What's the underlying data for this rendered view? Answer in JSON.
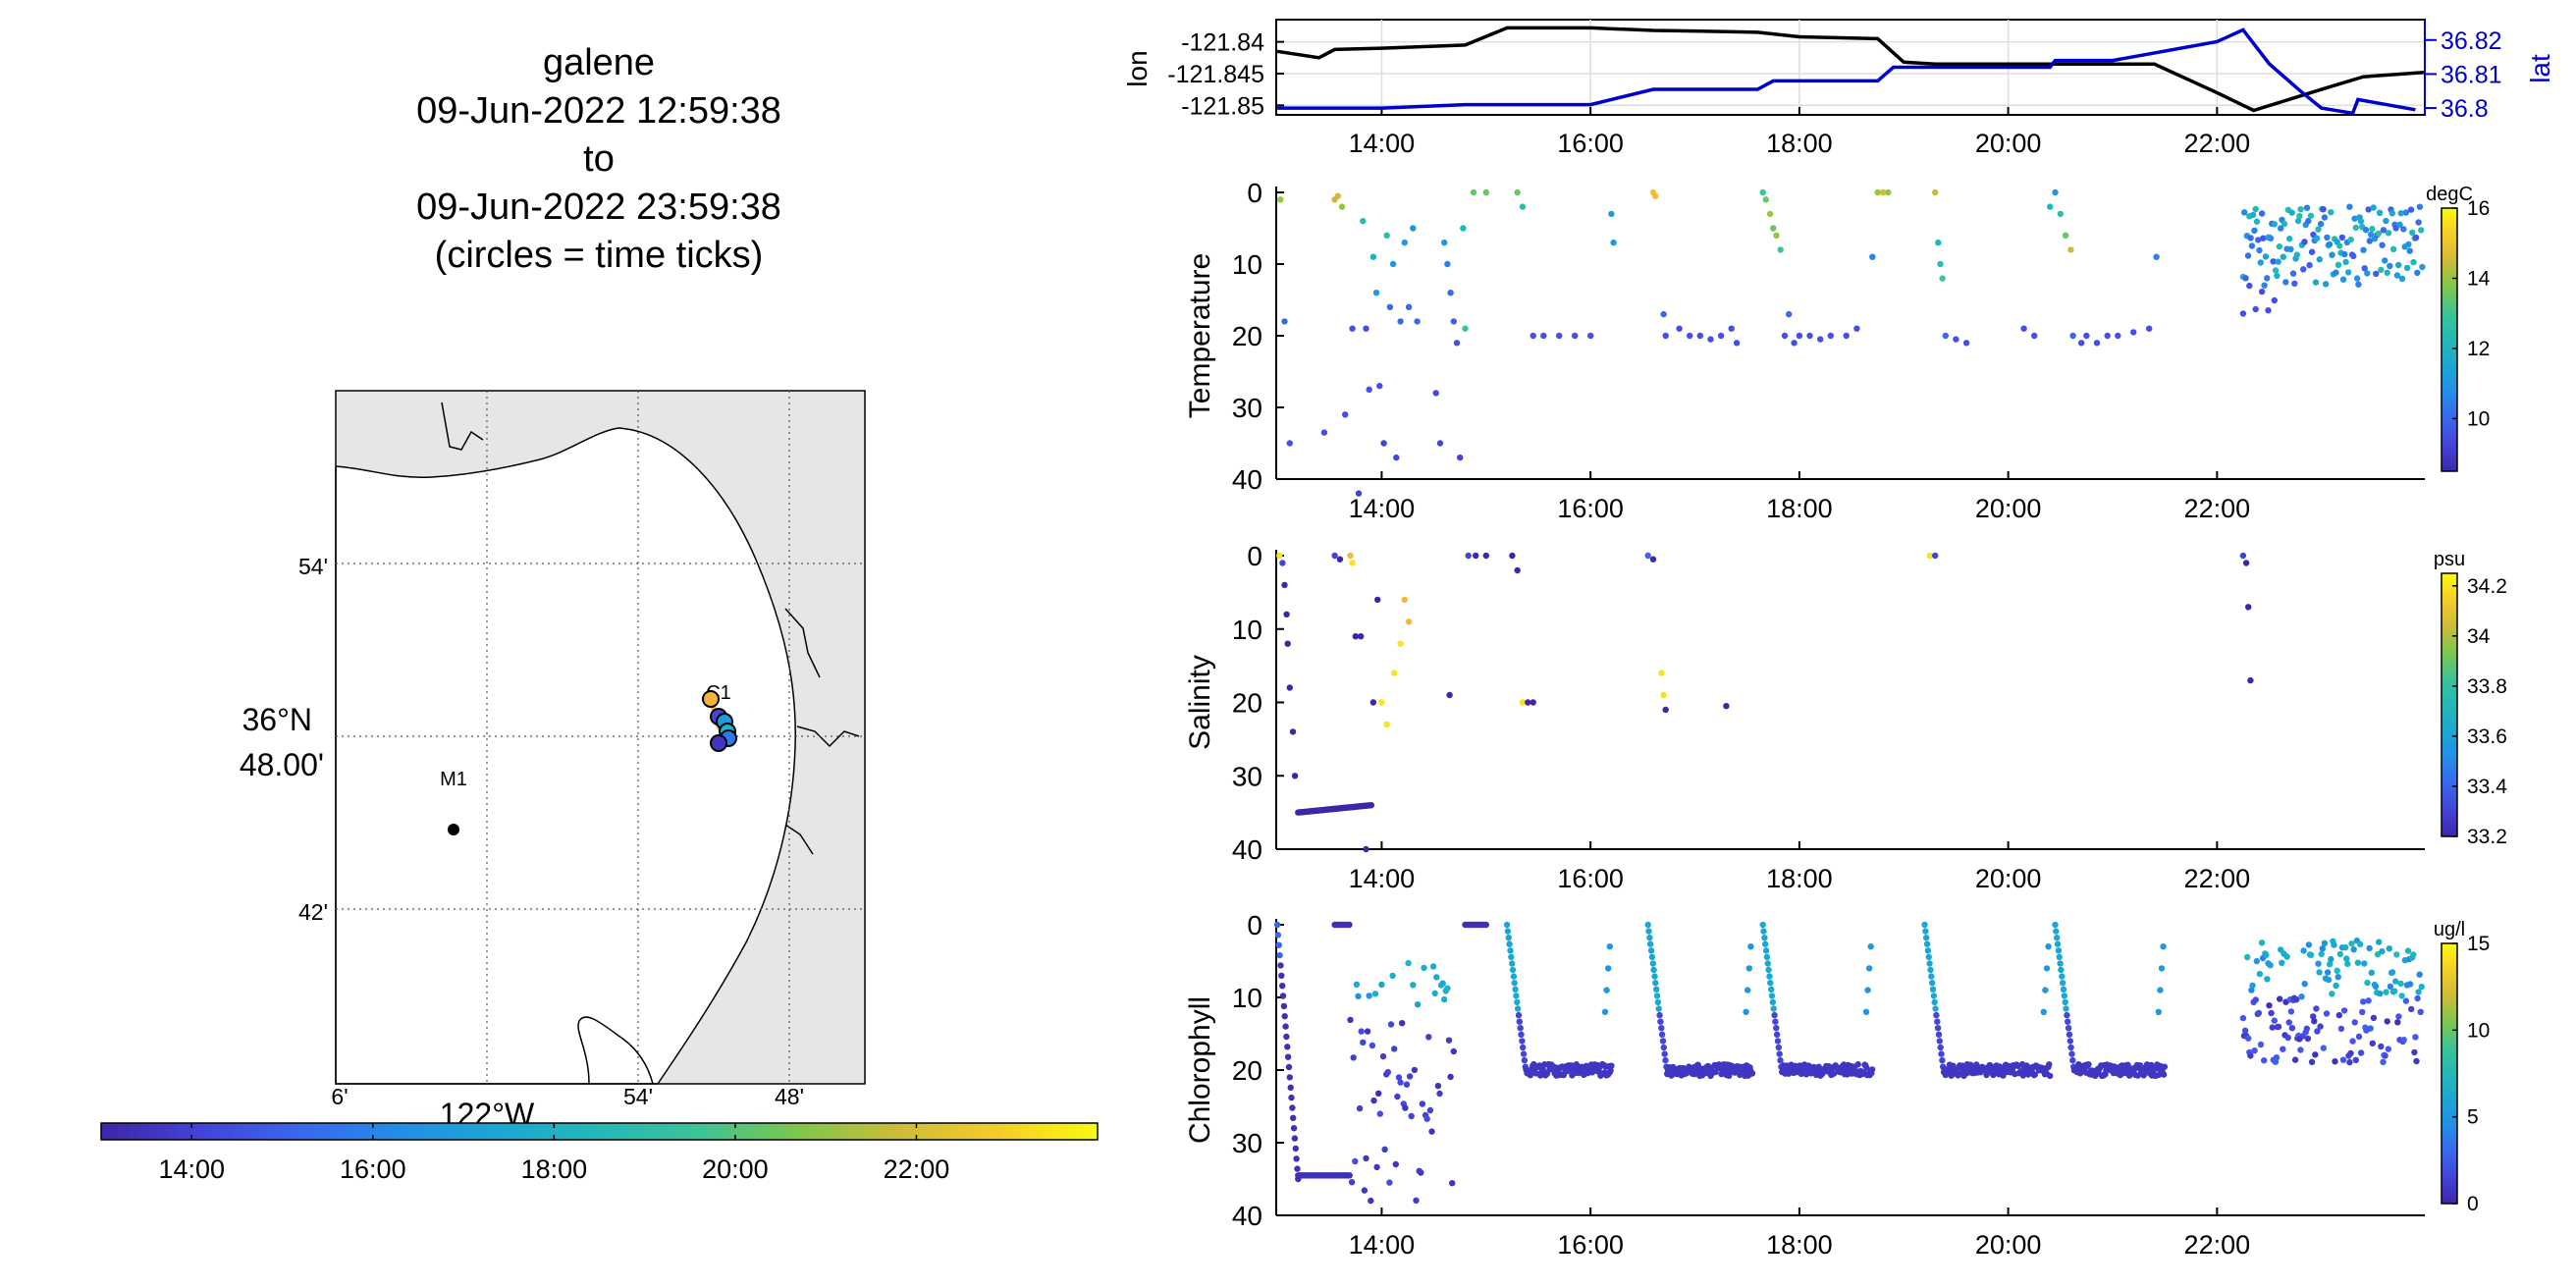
{
  "title": {
    "lines": [
      "galene",
      "09-Jun-2022 12:59:38",
      "to",
      "09-Jun-2022 23:59:38",
      "(circles = time ticks)"
    ]
  },
  "map": {
    "lat_ticks": [
      "54'",
      "36°N|48.00'",
      "42'"
    ],
    "lon_ticks": [
      "6'",
      "122°W",
      "54'",
      "48'"
    ],
    "stations": [
      {
        "name": "M1",
        "kind": "mooring"
      },
      {
        "name": "C1",
        "kind": "station"
      }
    ],
    "colors": {
      "land": "#e6e6e6",
      "water": "#ffffff",
      "coast": "#000000"
    }
  },
  "time_colorbar": {
    "ticks": [
      "14:00",
      "16:00",
      "18:00",
      "20:00",
      "22:00"
    ],
    "colormap": "parula"
  },
  "chart_data": [
    {
      "type": "line",
      "ylabel_left": "lon",
      "ylabel_right": "lat",
      "x_ticks": [
        "14:00",
        "16:00",
        "18:00",
        "20:00",
        "22:00"
      ],
      "xlim": [
        "12:59",
        "23:59"
      ],
      "yticks_left": [
        "-121.84",
        "-121.845",
        "-121.85"
      ],
      "yticks_right": [
        "36.82",
        "36.81",
        "36.8"
      ],
      "ylim_left": [
        -121.8515,
        -121.8365
      ],
      "ylim_right": [
        36.798,
        36.826
      ],
      "grid": true,
      "series": [
        {
          "name": "lon",
          "color": "#000000",
          "axis": "left",
          "x": [
            13.0,
            13.4,
            13.55,
            14.0,
            14.8,
            15.2,
            16.0,
            16.6,
            17.0,
            17.6,
            18.0,
            18.75,
            19.0,
            19.3,
            20.0,
            20.6,
            21.0,
            21.4,
            22.0,
            22.35,
            23.0,
            23.4,
            23.98
          ],
          "y": [
            -121.8415,
            -121.8425,
            -121.8412,
            -121.841,
            -121.8405,
            -121.8378,
            -121.8378,
            -121.8382,
            -121.8383,
            -121.8385,
            -121.8392,
            -121.8395,
            -121.8432,
            -121.8435,
            -121.8435,
            -121.8435,
            -121.8435,
            -121.8435,
            -121.848,
            -121.8508,
            -121.8475,
            -121.8455,
            -121.8448
          ]
        },
        {
          "name": "lat",
          "color": "#0000cc",
          "axis": "right",
          "x": [
            13.0,
            14.0,
            14.8,
            15.2,
            16.0,
            16.6,
            17.0,
            17.6,
            17.75,
            18.0,
            18.75,
            18.9,
            19.0,
            20.0,
            20.4,
            20.45,
            21.0,
            22.0,
            22.25,
            22.5,
            22.8,
            23.0,
            23.3,
            23.35,
            23.9
          ],
          "y": [
            36.8,
            36.8,
            36.801,
            36.801,
            36.801,
            36.8055,
            36.8055,
            36.8055,
            36.808,
            36.808,
            36.808,
            36.812,
            36.812,
            36.812,
            36.812,
            36.814,
            36.814,
            36.8195,
            36.823,
            36.813,
            36.805,
            36.8,
            36.7985,
            36.8025,
            36.7995
          ]
        }
      ]
    },
    {
      "type": "scatter",
      "ylabel": "Temperature",
      "colorbar_unit": "degC",
      "colorbar_ticks": [
        "16",
        "14",
        "12",
        "10"
      ],
      "clim": [
        8.5,
        16.0
      ],
      "ylim": [
        40,
        0
      ],
      "yticks": [
        "0",
        "10",
        "20",
        "30",
        "40"
      ],
      "x_ticks": [
        "14:00",
        "16:00",
        "18:00",
        "20:00",
        "22:00"
      ],
      "points": [
        [
          13.03,
          1,
          14
        ],
        [
          13.07,
          18,
          10
        ],
        [
          13.12,
          35,
          9.5
        ],
        [
          13.45,
          33.5,
          9.5
        ],
        [
          13.55,
          1,
          14.5
        ],
        [
          13.58,
          0.5,
          14.5
        ],
        [
          13.62,
          2,
          14
        ],
        [
          13.65,
          31,
          9.5
        ],
        [
          13.72,
          19,
          9.5
        ],
        [
          13.78,
          42,
          9.2
        ],
        [
          13.82,
          4,
          12.5
        ],
        [
          13.85,
          19,
          9.5
        ],
        [
          13.88,
          27.5,
          9.5
        ],
        [
          13.92,
          9,
          12
        ],
        [
          13.95,
          14,
          11
        ],
        [
          13.98,
          27,
          9.5
        ],
        [
          14.02,
          35,
          9.2
        ],
        [
          14.05,
          6,
          12.5
        ],
        [
          14.08,
          16,
          10
        ],
        [
          14.11,
          10,
          11
        ],
        [
          14.14,
          37,
          9.3
        ],
        [
          14.18,
          18,
          10
        ],
        [
          14.22,
          7,
          11
        ],
        [
          14.26,
          16,
          10
        ],
        [
          14.3,
          5,
          11
        ],
        [
          14.34,
          18,
          10
        ],
        [
          14.52,
          28,
          9.3
        ],
        [
          14.56,
          35,
          9.3
        ],
        [
          14.6,
          7,
          11
        ],
        [
          14.63,
          10,
          10.5
        ],
        [
          14.66,
          14,
          10
        ],
        [
          14.69,
          18,
          9.8
        ],
        [
          14.72,
          21,
          9.5
        ],
        [
          14.75,
          37,
          9.2
        ],
        [
          14.78,
          5,
          12
        ],
        [
          14.8,
          19,
          13
        ],
        [
          14.88,
          0,
          13.5
        ],
        [
          15.0,
          0,
          13.5
        ],
        [
          15.3,
          0,
          13.5
        ],
        [
          15.35,
          2,
          12.5
        ],
        [
          15.45,
          20,
          9.5
        ],
        [
          15.55,
          20,
          9.5
        ],
        [
          15.7,
          20,
          9.5
        ],
        [
          15.85,
          20,
          9.5
        ],
        [
          16.0,
          20,
          9.5
        ],
        [
          16.2,
          3,
          11
        ],
        [
          16.22,
          7,
          11
        ],
        [
          16.6,
          0,
          15
        ],
        [
          16.62,
          0.5,
          15
        ],
        [
          16.7,
          17,
          10
        ],
        [
          16.72,
          20,
          9.5
        ],
        [
          16.85,
          19,
          9.5
        ],
        [
          16.95,
          20,
          9.5
        ],
        [
          17.05,
          20,
          9.5
        ],
        [
          17.15,
          20.5,
          9.5
        ],
        [
          17.25,
          20,
          9.5
        ],
        [
          17.35,
          19,
          9.5
        ],
        [
          17.4,
          21,
          9.5
        ],
        [
          17.65,
          0,
          13
        ],
        [
          17.68,
          1,
          13.5
        ],
        [
          17.72,
          3,
          14
        ],
        [
          17.75,
          5,
          13.5
        ],
        [
          17.78,
          6,
          14
        ],
        [
          17.82,
          8,
          13
        ],
        [
          17.86,
          20,
          9.5
        ],
        [
          17.9,
          17,
          10
        ],
        [
          17.95,
          21,
          9.5
        ],
        [
          18.0,
          20,
          9.5
        ],
        [
          18.1,
          20,
          9.5
        ],
        [
          18.2,
          20.5,
          9.5
        ],
        [
          18.3,
          20,
          9.5
        ],
        [
          18.45,
          20,
          9.5
        ],
        [
          18.55,
          19,
          9.5
        ],
        [
          18.7,
          9,
          10.5
        ],
        [
          18.75,
          0,
          14
        ],
        [
          18.8,
          0,
          14.5
        ],
        [
          18.85,
          0,
          14
        ],
        [
          19.3,
          0,
          14.5
        ],
        [
          19.33,
          7,
          12
        ],
        [
          19.35,
          10,
          12.5
        ],
        [
          19.37,
          12,
          13
        ],
        [
          19.4,
          20,
          10
        ],
        [
          19.5,
          20.5,
          9.5
        ],
        [
          19.6,
          21,
          9.5
        ],
        [
          20.15,
          19,
          9.5
        ],
        [
          20.25,
          20,
          9.5
        ],
        [
          20.4,
          2,
          12
        ],
        [
          20.45,
          0,
          11
        ],
        [
          20.5,
          3,
          12.5
        ],
        [
          20.55,
          6,
          13.5
        ],
        [
          20.6,
          8,
          14.5
        ],
        [
          20.62,
          20,
          10
        ],
        [
          20.7,
          21,
          9.5
        ],
        [
          20.75,
          20,
          9.5
        ],
        [
          20.85,
          21,
          9.5
        ],
        [
          20.95,
          20,
          9.5
        ],
        [
          21.05,
          20,
          9.5
        ],
        [
          21.2,
          19.5,
          9.5
        ],
        [
          21.35,
          19,
          9.5
        ],
        [
          21.42,
          9,
          10.5
        ]
      ],
      "band": {
        "x": [
          22.25,
          23.97
        ],
        "y": [
          2,
          13
        ],
        "y_sparse": [
          13,
          21
        ],
        "color_range": [
          9.5,
          12.5
        ]
      }
    },
    {
      "type": "scatter",
      "ylabel": "Salinity",
      "colorbar_unit": "psu",
      "colorbar_ticks": [
        "34.2",
        "34",
        "33.8",
        "33.6",
        "33.4",
        "33.2"
      ],
      "clim": [
        33.2,
        34.25
      ],
      "ylim": [
        40,
        0
      ],
      "yticks": [
        "0",
        "10",
        "20",
        "30",
        "40"
      ],
      "x_ticks": [
        "14:00",
        "16:00",
        "18:00",
        "20:00",
        "22:00"
      ],
      "points": [
        [
          13.02,
          0,
          34.2
        ],
        [
          13.05,
          1,
          33.3
        ],
        [
          13.07,
          4,
          33.2
        ],
        [
          13.09,
          8,
          33.2
        ],
        [
          13.1,
          12,
          33.2
        ],
        [
          13.12,
          18,
          33.2
        ],
        [
          13.15,
          24,
          33.2
        ],
        [
          13.17,
          30,
          33.2
        ],
        [
          13.55,
          0,
          33.3
        ],
        [
          13.6,
          0.5,
          33.2
        ],
        [
          13.7,
          0,
          34.1
        ],
        [
          13.72,
          1,
          34.2
        ],
        [
          13.75,
          11,
          33.2
        ],
        [
          13.8,
          11,
          33.2
        ],
        [
          13.85,
          40,
          33.2
        ],
        [
          13.92,
          20,
          33.2
        ],
        [
          13.96,
          6,
          33.2
        ],
        [
          14.0,
          20,
          34.2
        ],
        [
          14.05,
          23,
          34.2
        ],
        [
          14.12,
          16,
          34.2
        ],
        [
          14.18,
          12,
          34.2
        ],
        [
          14.22,
          6,
          34.1
        ],
        [
          14.26,
          9,
          34.1
        ],
        [
          14.65,
          19,
          33.2
        ],
        [
          14.83,
          0,
          33.3
        ],
        [
          14.9,
          0,
          33.2
        ],
        [
          15.0,
          0,
          33.2
        ],
        [
          15.25,
          0,
          33.2
        ],
        [
          15.3,
          2,
          33.2
        ],
        [
          15.35,
          20,
          34.2
        ],
        [
          15.4,
          20,
          33.2
        ],
        [
          15.45,
          20,
          33.2
        ],
        [
          16.55,
          0,
          33.4
        ],
        [
          16.6,
          0.5,
          33.2
        ],
        [
          16.68,
          16,
          34.2
        ],
        [
          16.7,
          19,
          34.2
        ],
        [
          16.72,
          21,
          33.2
        ],
        [
          17.3,
          20.5,
          33.2
        ],
        [
          19.25,
          0,
          34.2
        ],
        [
          19.3,
          0,
          33.3
        ],
        [
          22.25,
          0,
          33.3
        ],
        [
          22.28,
          1,
          33.2
        ],
        [
          22.3,
          7,
          33.2
        ],
        [
          22.32,
          17,
          33.2
        ]
      ],
      "dense_profile": {
        "x": [
          13.2,
          13.9
        ],
        "y": [
          35,
          34
        ],
        "color": 33.2
      }
    },
    {
      "type": "scatter",
      "ylabel": "Chlorophyll",
      "colorbar_unit": "ug/l",
      "colorbar_ticks": [
        "15",
        "10",
        "5",
        "0"
      ],
      "clim": [
        0,
        15
      ],
      "ylim": [
        40,
        0
      ],
      "yticks": [
        "0",
        "10",
        "20",
        "30",
        "40"
      ],
      "x_ticks": [
        "14:00",
        "16:00",
        "18:00",
        "20:00",
        "22:00"
      ],
      "profiles": [
        {
          "x": [
            13.0,
            13.2
          ],
          "kind": "down",
          "ymax": 35
        },
        {
          "x": [
            13.55,
            13.7
          ],
          "kind": "surface"
        },
        {
          "x": [
            13.7,
            14.7
          ],
          "kind": "yoyo",
          "ymin": 5,
          "ymax": 39
        },
        {
          "x": [
            14.8,
            15.0
          ],
          "kind": "surface"
        },
        {
          "x": [
            15.2,
            16.2
          ],
          "kind": "down_flat",
          "ymax": 20
        },
        {
          "x": [
            16.55,
            17.55
          ],
          "kind": "down_flat",
          "ymax": 20
        },
        {
          "x": [
            17.65,
            18.7
          ],
          "kind": "down_flat",
          "ymax": 20
        },
        {
          "x": [
            19.2,
            20.4
          ],
          "kind": "down_flat",
          "ymax": 20
        },
        {
          "x": [
            20.45,
            21.5
          ],
          "kind": "down_flat",
          "ymax": 20
        },
        {
          "x": [
            22.25,
            23.97
          ],
          "kind": "band",
          "ymin": 2,
          "ymax": 19
        }
      ]
    }
  ]
}
